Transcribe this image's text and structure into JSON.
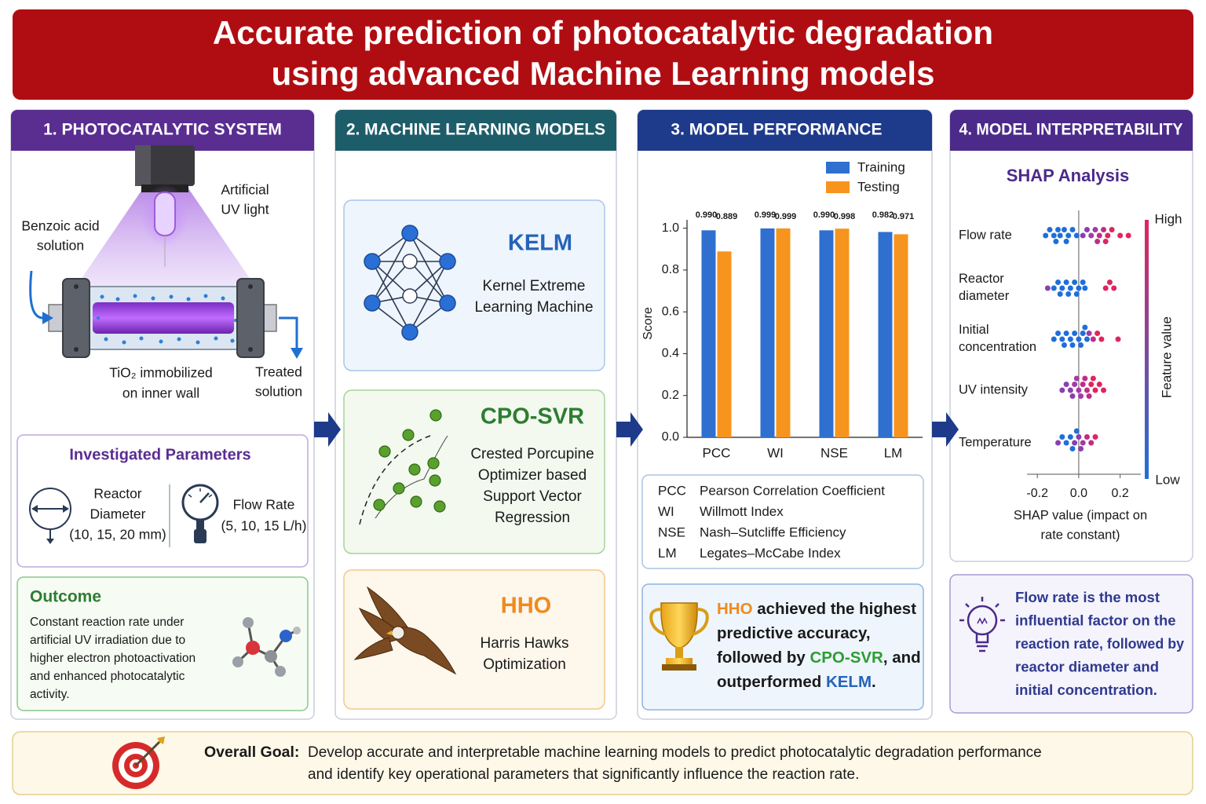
{
  "header": {
    "title": [
      "Accurate prediction of photocatalytic degradation",
      "using advanced Machine Learning models"
    ]
  },
  "system": {
    "heading": "1. PHOTOCATALYTIC SYSTEM",
    "uv_light": [
      "Artificial",
      "UV light"
    ],
    "inlet": [
      "Benzoic acid",
      "solution"
    ],
    "catalyst": [
      "TiO₂ immobilized",
      "on inner wall"
    ],
    "outlet": [
      "Treated",
      "solution"
    ],
    "parameters": {
      "title": "Investigated Parameters",
      "reactor": [
        "Reactor",
        "Diameter",
        "(10, 15, 20 mm)"
      ],
      "flow": [
        "Flow Rate",
        "(5, 10, 15 L/h)"
      ]
    },
    "outcome": {
      "title": "Outcome",
      "text": [
        "Constant reaction rate under",
        "artificial UV irradiation due to",
        "higher electron photoactivation",
        "and enhanced photocatalytic",
        "activity."
      ]
    }
  },
  "models": {
    "heading": "2. MACHINE LEARNING MODELS",
    "items": [
      {
        "name": "KELM",
        "color": "#2563b8",
        "description": [
          "Kernel Extreme",
          "Learning Machine"
        ]
      },
      {
        "name": "CPO-SVR",
        "color": "#2e7d32",
        "description": [
          "Crested Porcupine",
          "Optimizer based",
          "Support Vector",
          "Regression"
        ]
      },
      {
        "name": "HHO",
        "color": "#f08a1c",
        "description": [
          "Harris Hawks",
          "Optimization"
        ]
      }
    ]
  },
  "performance": {
    "heading": "3. MODEL PERFORMANCE",
    "abbreviations": [
      [
        "PCC",
        "Pearson Correlation Coefficient"
      ],
      [
        "WI",
        "Willmott Index"
      ],
      [
        "NSE",
        "Nash–Sutcliffe Efficiency"
      ],
      [
        "LM",
        "Legates–McCabe Index"
      ]
    ],
    "conclusion": [
      [
        {
          "text": "HHO",
          "color": "#f08a1c"
        },
        {
          "text": " achieved the highest"
        }
      ],
      [
        {
          "text": "predictive accuracy,"
        }
      ],
      [
        {
          "text": "followed by "
        },
        {
          "text": "CPO-SVR",
          "color": "#2e9d32"
        },
        {
          "text": ", and"
        }
      ],
      [
        {
          "text": "outperformed "
        },
        {
          "text": "KELM",
          "color": "#2563b8"
        },
        {
          "text": "."
        }
      ]
    ]
  },
  "interpretability": {
    "heading": "4. MODEL INTERPRETABILITY",
    "insight": [
      "Flow rate is the most",
      "influential factor on the",
      "reaction rate, followed by",
      "reactor diameter and",
      "initial concentration."
    ]
  },
  "goal": {
    "label": "Overall Goal:",
    "text": [
      "Develop accurate and interpretable machine learning models to predict photocatalytic degradation performance",
      "and identify key operational parameters that significantly  influence the reaction rate."
    ]
  },
  "chart_data": [
    {
      "type": "bar",
      "ylabel": "Score",
      "categories": [
        "PCC",
        "WI",
        "NSE",
        "LM"
      ],
      "series": [
        {
          "name": "Training",
          "color": "#2f6fd0",
          "values": [
            0.99,
            0.999,
            0.99,
            0.982
          ],
          "value_labels": [
            "0.990",
            "0.999",
            "0.990",
            "0.982"
          ]
        },
        {
          "name": "Testing",
          "color": "#f7941d",
          "values": [
            0.889,
            0.999,
            0.998,
            0.971
          ],
          "value_labels": [
            "0.889",
            "0.999",
            "0.998",
            "0.971"
          ]
        }
      ],
      "ylim": [
        0,
        1.04
      ],
      "yticks": [
        {
          "value": 0,
          "label": "0.0"
        },
        0.2,
        0.4,
        0.6,
        0.8,
        {
          "value": 1,
          "label": "1.0"
        }
      ],
      "legend": "upper right"
    },
    {
      "type": "scatter",
      "title": "SHAP Analysis",
      "xlabel": [
        "SHAP value (impact on",
        "rate constant)"
      ],
      "xlim": [
        -0.25,
        0.3
      ],
      "xticks": [
        -0.2,
        {
          "value": 0,
          "label": "0.0"
        },
        0.2
      ],
      "series": [
        {
          "name": "Flow rate",
          "values": [
            -0.16,
            -0.14,
            -0.12,
            -0.1,
            -0.09,
            -0.07,
            -0.05,
            -0.03,
            -0.01,
            -0.11,
            -0.06,
            0.02,
            0.04,
            0.06,
            0.08,
            0.1,
            0.12,
            0.14,
            0.16,
            0.2,
            0.24,
            0.09,
            0.13
          ],
          "colors": [
            "#1e6fd9",
            "#1e6fd9",
            "#1e6fd9",
            "#1e6fd9",
            "#1e6fd9",
            "#1e6fd9",
            "#1e6fd9",
            "#1e6fd9",
            "#1e6fd9",
            "#1e6fd9",
            "#1e6fd9",
            "#8a3fb0",
            "#8a3fb0",
            "#a33aa8",
            "#a33aa8",
            "#c02c86",
            "#c02c86",
            "#e0245e",
            "#e0245e",
            "#e0245e",
            "#e0245e",
            "#c02c86",
            "#e0245e"
          ]
        },
        {
          "name": "Reactor diameter",
          "values": [
            -0.15,
            -0.12,
            -0.1,
            -0.08,
            -0.06,
            -0.04,
            -0.02,
            0.0,
            0.02,
            -0.09,
            -0.05,
            -0.01,
            0.03,
            0.13,
            0.15,
            0.17
          ],
          "colors": [
            "#8a3fb0",
            "#1e6fd9",
            "#1e6fd9",
            "#1e6fd9",
            "#1e6fd9",
            "#1e6fd9",
            "#1e6fd9",
            "#1e6fd9",
            "#1e6fd9",
            "#1e6fd9",
            "#1e6fd9",
            "#1e6fd9",
            "#1e6fd9",
            "#e0245e",
            "#e0245e",
            "#e0245e"
          ]
        },
        {
          "name": "Initial concentration",
          "values": [
            -0.12,
            -0.1,
            -0.08,
            -0.06,
            -0.04,
            -0.02,
            0.0,
            0.02,
            0.04,
            -0.07,
            -0.03,
            0.01,
            0.05,
            0.07,
            0.09,
            0.11,
            0.19,
            0.03
          ],
          "colors": [
            "#1e6fd9",
            "#1e6fd9",
            "#1e6fd9",
            "#1e6fd9",
            "#1e6fd9",
            "#1e6fd9",
            "#1e6fd9",
            "#1e6fd9",
            "#1e6fd9",
            "#1e6fd9",
            "#1e6fd9",
            "#1e6fd9",
            "#a33aa8",
            "#c02c86",
            "#e0245e",
            "#e0245e",
            "#e0245e",
            "#1e6fd9"
          ]
        },
        {
          "name": "UV intensity",
          "values": [
            -0.08,
            -0.06,
            -0.04,
            -0.02,
            0.0,
            0.02,
            0.04,
            0.06,
            0.08,
            0.1,
            0.12,
            -0.03,
            0.01,
            0.05,
            0.03,
            -0.01,
            0.07
          ],
          "colors": [
            "#8a3fb0",
            "#8a3fb0",
            "#8a3fb0",
            "#a33aa8",
            "#a33aa8",
            "#c02c86",
            "#c02c86",
            "#e0245e",
            "#e0245e",
            "#e0245e",
            "#e0245e",
            "#8a3fb0",
            "#a33aa8",
            "#c02c86",
            "#c02c86",
            "#a33aa8",
            "#e0245e"
          ]
        },
        {
          "name": "Temperature",
          "values": [
            -0.1,
            -0.08,
            -0.06,
            -0.04,
            -0.02,
            0.0,
            0.02,
            0.04,
            0.06,
            0.08,
            -0.03,
            0.01,
            -0.01
          ],
          "colors": [
            "#8a3fb0",
            "#1e6fd9",
            "#1e6fd9",
            "#1e6fd9",
            "#8a3fb0",
            "#8a3fb0",
            "#a33aa8",
            "#c02c86",
            "#c02c86",
            "#e0245e",
            "#1e6fd9",
            "#8a3fb0",
            "#1e6fd9"
          ]
        }
      ],
      "colorbar": {
        "label": "Feature value",
        "high": "High",
        "low": "Low",
        "colors": [
          "#e0245e",
          "#1e6fd9"
        ]
      }
    }
  ]
}
